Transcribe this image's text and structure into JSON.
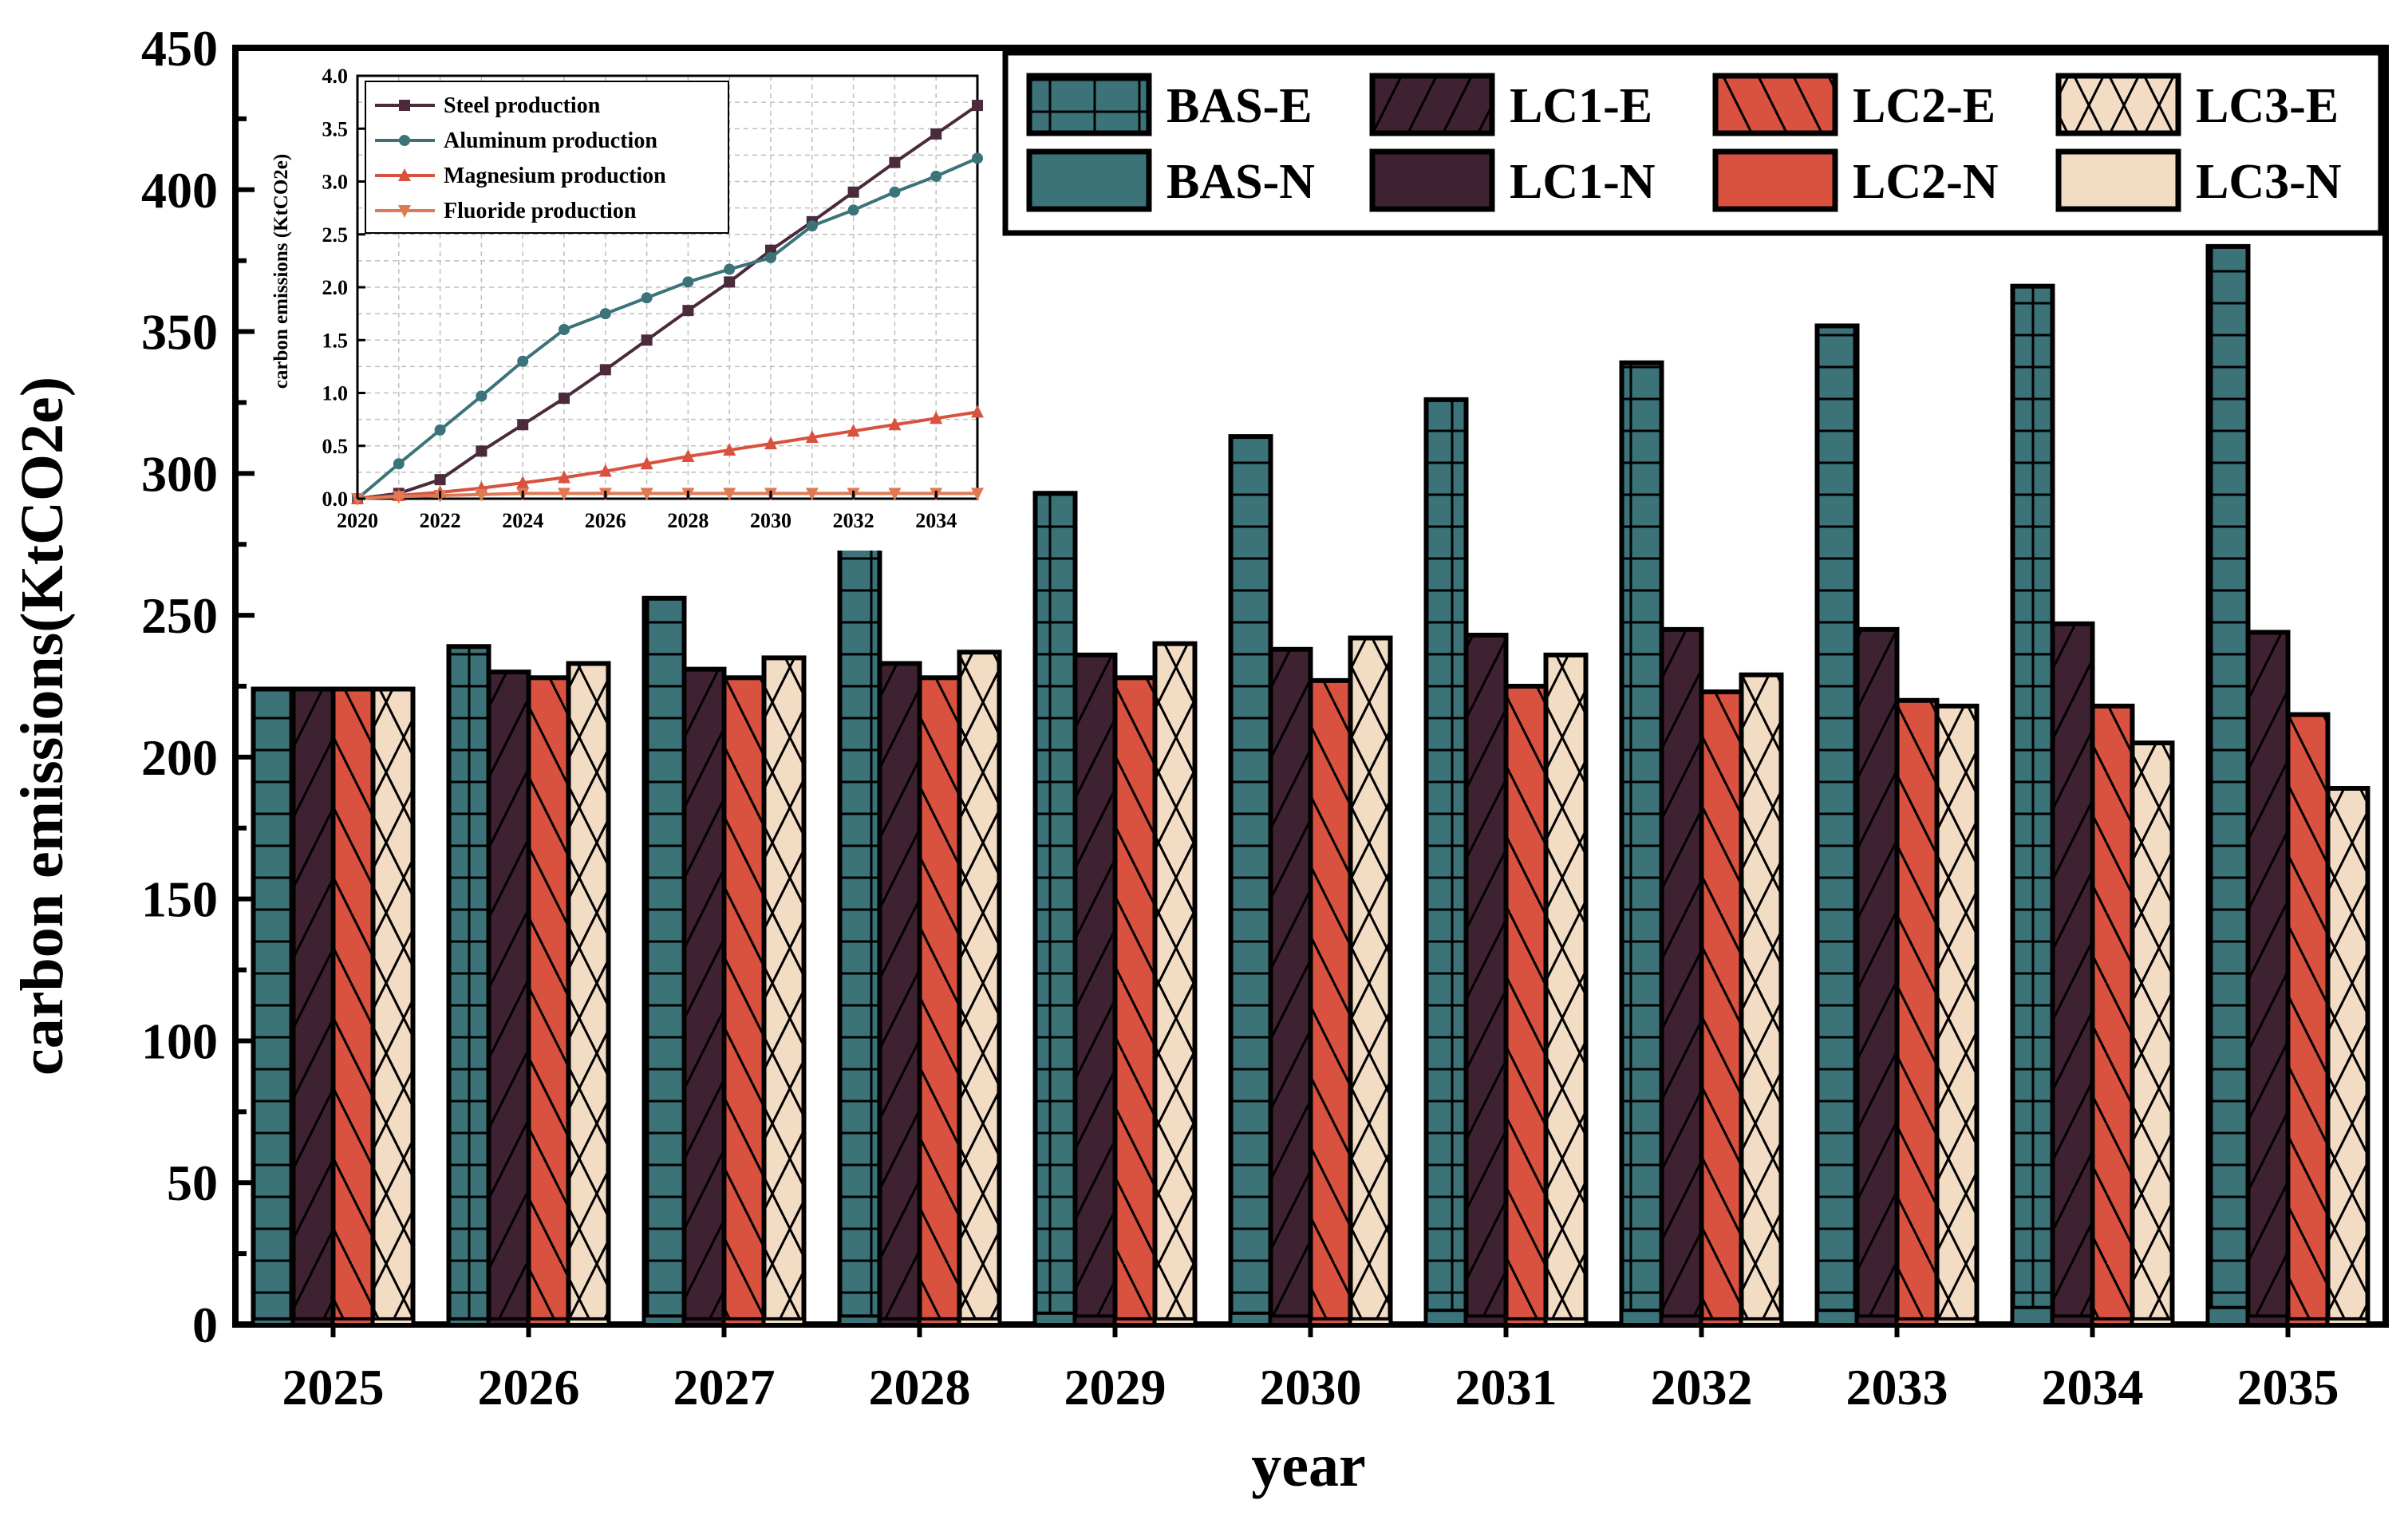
{
  "chart_data": [
    {
      "type": "bar",
      "title": "",
      "xlabel": "year",
      "ylabel": "carbon emissions(KtCO2e)",
      "ylim": [
        0,
        450
      ],
      "yticks": [
        0,
        50,
        100,
        150,
        200,
        250,
        300,
        350,
        400,
        450
      ],
      "categories": [
        "2025",
        "2026",
        "2027",
        "2028",
        "2029",
        "2030",
        "2031",
        "2032",
        "2033",
        "2034",
        "2035"
      ],
      "legend_position": "top-right",
      "legend": [
        "BAS-E",
        "LC1-E",
        "LC2-E",
        "LC3-E",
        "BAS-N",
        "LC1-N",
        "LC2-N",
        "LC3-N"
      ],
      "series": [
        {
          "name": "BAS",
          "color": "#3b7379",
          "hatch": "grid",
          "values": [
            224,
            239,
            256,
            274,
            293,
            313,
            326,
            339,
            352,
            366,
            380
          ],
          "e_values": [
            2,
            2,
            3,
            3,
            4,
            4,
            5,
            5,
            5,
            6,
            6
          ]
        },
        {
          "name": "LC1",
          "color": "#3f2231",
          "hatch": "slash",
          "values": [
            224,
            230,
            231,
            233,
            236,
            238,
            243,
            245,
            245,
            247,
            244
          ],
          "e_values": [
            2,
            2,
            2,
            2,
            3,
            3,
            3,
            3,
            3,
            3,
            3
          ]
        },
        {
          "name": "LC2",
          "color": "#d9513f",
          "hatch": "backslash",
          "values": [
            224,
            228,
            228,
            228,
            228,
            227,
            225,
            223,
            220,
            218,
            215
          ],
          "e_values": [
            2,
            2,
            2,
            2,
            2,
            2,
            2,
            2,
            2,
            2,
            2
          ]
        },
        {
          "name": "LC3",
          "color": "#f2dcc4",
          "hatch": "cross",
          "values": [
            224,
            233,
            235,
            237,
            240,
            242,
            236,
            229,
            218,
            205,
            189
          ],
          "e_values": [
            2,
            2,
            2,
            2,
            2,
            2,
            2,
            2,
            2,
            2,
            2
          ]
        }
      ]
    },
    {
      "type": "line",
      "title": "",
      "xlabel": "",
      "ylabel": "carbon emissions (KtCO2e)",
      "xlim": [
        2020,
        2035
      ],
      "ylim": [
        0,
        4.0
      ],
      "xticks": [
        "2020",
        "2022",
        "2024",
        "2026",
        "2028",
        "2030",
        "2032",
        "2034"
      ],
      "yticks": [
        "0.0",
        "0.5",
        "1.0",
        "1.5",
        "2.0",
        "2.5",
        "3.0",
        "3.5",
        "4.0"
      ],
      "grid": true,
      "legend_position": "top-left",
      "x": [
        2020,
        2021,
        2022,
        2023,
        2024,
        2025,
        2026,
        2027,
        2028,
        2029,
        2030,
        2031,
        2032,
        2033,
        2034,
        2035
      ],
      "series": [
        {
          "name": "Steel production",
          "color": "#4a2a3b",
          "marker": "square",
          "values": [
            0.0,
            0.05,
            0.18,
            0.45,
            0.7,
            0.95,
            1.22,
            1.5,
            1.78,
            2.05,
            2.35,
            2.62,
            2.9,
            3.18,
            3.45,
            3.72
          ]
        },
        {
          "name": "Aluminum production",
          "color": "#3b7379",
          "marker": "circle",
          "values": [
            0.0,
            0.33,
            0.65,
            0.97,
            1.3,
            1.6,
            1.75,
            1.9,
            2.05,
            2.17,
            2.28,
            2.58,
            2.73,
            2.9,
            3.05,
            3.22
          ]
        },
        {
          "name": "Magnesium production",
          "color": "#d9513f",
          "marker": "triangle-up",
          "values": [
            0.0,
            0.03,
            0.06,
            0.1,
            0.15,
            0.2,
            0.26,
            0.33,
            0.4,
            0.46,
            0.52,
            0.58,
            0.64,
            0.7,
            0.76,
            0.82
          ]
        },
        {
          "name": "Fluoride production",
          "color": "#e07a55",
          "marker": "triangle-down",
          "values": [
            0.0,
            0.02,
            0.03,
            0.04,
            0.05,
            0.05,
            0.05,
            0.05,
            0.05,
            0.05,
            0.05,
            0.05,
            0.05,
            0.05,
            0.05,
            0.05
          ]
        }
      ]
    }
  ]
}
